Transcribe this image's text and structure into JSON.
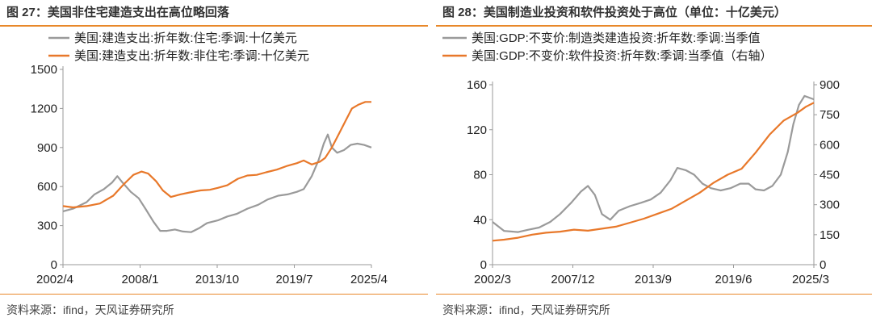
{
  "panels": [
    {
      "title": "图 27：美国非住宅建造支出在高位略回落",
      "source": "资料来源：ifind，天风证券研究所",
      "chart_data": {
        "type": "line",
        "title": "图 27：美国非住宅建造支出在高位略回落",
        "x_ticks": [
          "2002/4",
          "2008/1",
          "2013/10",
          "2019/7",
          "2025/4"
        ],
        "x_range": [
          2002.25,
          2025.25
        ],
        "y_left": {
          "range": [
            0,
            1500
          ],
          "ticks": [
            "0",
            "300",
            "600",
            "900",
            "1200",
            "1500"
          ]
        },
        "series": [
          {
            "name": "美国:建造支出:折年数:住宅:季调:十亿美元",
            "color": "#9a9a9a",
            "axis": "left",
            "points": [
              [
                2002.25,
                410
              ],
              [
                2003.0,
                430
              ],
              [
                2004.0,
                480
              ],
              [
                2004.6,
                540
              ],
              [
                2005.3,
                580
              ],
              [
                2005.9,
                630
              ],
              [
                2006.3,
                680
              ],
              [
                2006.7,
                630
              ],
              [
                2007.3,
                560
              ],
              [
                2007.9,
                510
              ],
              [
                2008.4,
                430
              ],
              [
                2009.0,
                330
              ],
              [
                2009.5,
                260
              ],
              [
                2010.0,
                260
              ],
              [
                2010.6,
                270
              ],
              [
                2011.2,
                255
              ],
              [
                2011.8,
                250
              ],
              [
                2012.4,
                280
              ],
              [
                2013.0,
                320
              ],
              [
                2013.8,
                340
              ],
              [
                2014.5,
                370
              ],
              [
                2015.2,
                390
              ],
              [
                2016.0,
                430
              ],
              [
                2016.8,
                460
              ],
              [
                2017.5,
                500
              ],
              [
                2018.3,
                530
              ],
              [
                2019.0,
                540
              ],
              [
                2019.7,
                560
              ],
              [
                2020.2,
                580
              ],
              [
                2020.8,
                680
              ],
              [
                2021.3,
                800
              ],
              [
                2021.7,
                930
              ],
              [
                2022.0,
                1000
              ],
              [
                2022.3,
                900
              ],
              [
                2022.7,
                860
              ],
              [
                2023.2,
                880
              ],
              [
                2023.7,
                920
              ],
              [
                2024.2,
                930
              ],
              [
                2024.7,
                920
              ],
              [
                2025.25,
                900
              ]
            ]
          },
          {
            "name": "美国:建造支出:折年数:非住宅:季调:十亿美元",
            "color": "#e8782a",
            "axis": "left",
            "points": [
              [
                2002.25,
                450
              ],
              [
                2003.0,
                440
              ],
              [
                2004.0,
                450
              ],
              [
                2005.0,
                470
              ],
              [
                2006.0,
                530
              ],
              [
                2006.8,
                620
              ],
              [
                2007.5,
                690
              ],
              [
                2008.1,
                715
              ],
              [
                2008.6,
                700
              ],
              [
                2009.2,
                640
              ],
              [
                2009.7,
                570
              ],
              [
                2010.3,
                520
              ],
              [
                2011.0,
                540
              ],
              [
                2011.7,
                555
              ],
              [
                2012.5,
                570
              ],
              [
                2013.2,
                575
              ],
              [
                2013.8,
                590
              ],
              [
                2014.5,
                610
              ],
              [
                2015.3,
                660
              ],
              [
                2016.0,
                685
              ],
              [
                2016.7,
                690
              ],
              [
                2017.4,
                710
              ],
              [
                2018.2,
                730
              ],
              [
                2019.0,
                760
              ],
              [
                2019.7,
                780
              ],
              [
                2020.2,
                800
              ],
              [
                2020.8,
                770
              ],
              [
                2021.4,
                790
              ],
              [
                2021.8,
                820
              ],
              [
                2022.3,
                900
              ],
              [
                2022.8,
                1000
              ],
              [
                2023.3,
                1100
              ],
              [
                2023.8,
                1200
              ],
              [
                2024.3,
                1230
              ],
              [
                2024.8,
                1250
              ],
              [
                2025.25,
                1250
              ]
            ]
          }
        ]
      }
    },
    {
      "title": "图 28：美国制造业投资和软件投资处于高位（单位：十亿美元）",
      "source": "资料来源：ifind，天风证券研究所",
      "chart_data": {
        "type": "line",
        "title": "图 28：美国制造业投资和软件投资处于高位（单位：十亿美元）",
        "x_ticks": [
          "2002/3",
          "2007/12",
          "2013/9",
          "2019/6",
          "2025/3"
        ],
        "x_range": [
          2002.17,
          2025.17
        ],
        "y_left": {
          "range": [
            0,
            160
          ],
          "ticks": [
            "0",
            "40",
            "80",
            "120",
            "160"
          ]
        },
        "y_right": {
          "range": [
            0,
            900
          ],
          "ticks": [
            "0",
            "150",
            "300",
            "450",
            "600",
            "750",
            "900"
          ]
        },
        "series": [
          {
            "name": "美国:GDP:不变价:制造类建造投资:折年数:季调:当季值",
            "color": "#9a9a9a",
            "axis": "left",
            "points": [
              [
                2002.17,
                38
              ],
              [
                2003.0,
                30
              ],
              [
                2004.0,
                29
              ],
              [
                2004.7,
                31
              ],
              [
                2005.5,
                33
              ],
              [
                2006.3,
                38
              ],
              [
                2007.0,
                45
              ],
              [
                2007.8,
                55
              ],
              [
                2008.5,
                65
              ],
              [
                2009.0,
                70
              ],
              [
                2009.5,
                62
              ],
              [
                2010.0,
                45
              ],
              [
                2010.6,
                40
              ],
              [
                2011.2,
                48
              ],
              [
                2012.0,
                52
              ],
              [
                2012.8,
                55
              ],
              [
                2013.5,
                58
              ],
              [
                2014.2,
                64
              ],
              [
                2014.9,
                75
              ],
              [
                2015.4,
                86
              ],
              [
                2016.0,
                84
              ],
              [
                2016.6,
                80
              ],
              [
                2017.2,
                72
              ],
              [
                2017.8,
                68
              ],
              [
                2018.5,
                66
              ],
              [
                2019.2,
                68
              ],
              [
                2019.9,
                72
              ],
              [
                2020.5,
                72
              ],
              [
                2021.0,
                67
              ],
              [
                2021.6,
                66
              ],
              [
                2022.2,
                70
              ],
              [
                2022.8,
                80
              ],
              [
                2023.3,
                100
              ],
              [
                2023.7,
                125
              ],
              [
                2024.1,
                142
              ],
              [
                2024.5,
                150
              ],
              [
                2025.17,
                147
              ]
            ]
          },
          {
            "name": "美国:GDP:不变价:软件投资:折年数:季调:当季值（右轴）",
            "color": "#e8782a",
            "axis": "right",
            "points": [
              [
                2002.17,
                120
              ],
              [
                2003.0,
                125
              ],
              [
                2004.0,
                135
              ],
              [
                2005.0,
                150
              ],
              [
                2006.0,
                160
              ],
              [
                2007.0,
                165
              ],
              [
                2008.0,
                175
              ],
              [
                2009.0,
                170
              ],
              [
                2010.0,
                180
              ],
              [
                2011.0,
                190
              ],
              [
                2012.0,
                210
              ],
              [
                2013.0,
                230
              ],
              [
                2014.0,
                255
              ],
              [
                2015.0,
                280
              ],
              [
                2016.0,
                320
              ],
              [
                2017.0,
                360
              ],
              [
                2018.0,
                410
              ],
              [
                2019.0,
                450
              ],
              [
                2020.0,
                480
              ],
              [
                2021.0,
                560
              ],
              [
                2022.0,
                650
              ],
              [
                2023.0,
                720
              ],
              [
                2024.0,
                760
              ],
              [
                2024.6,
                790
              ],
              [
                2025.17,
                810
              ]
            ]
          }
        ]
      }
    }
  ]
}
